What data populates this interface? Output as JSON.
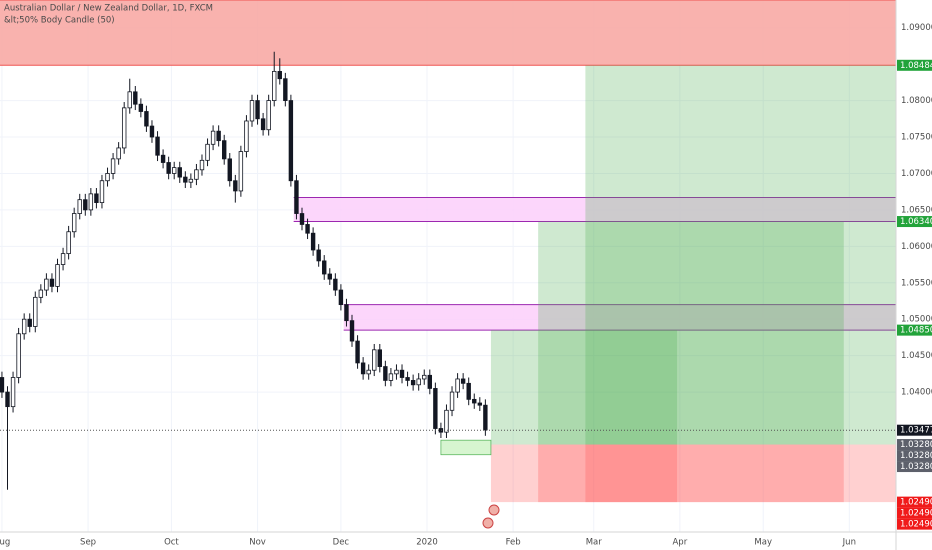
{
  "chart_data": {
    "type": "candlestick",
    "title": "Australian Dollar / New Zealand Dollar, 1D, FXCM",
    "subtitle": "&lt;50% Body Candle (50)",
    "x": [
      0,
      2,
      4,
      6,
      8,
      10,
      12,
      14,
      16,
      18,
      20,
      22,
      24,
      26,
      28,
      30,
      32,
      34,
      36,
      38,
      40,
      42,
      44,
      46,
      48,
      50,
      52,
      54,
      56,
      58,
      60,
      62,
      64,
      66,
      68,
      70,
      72,
      74,
      76,
      78,
      80,
      82,
      84,
      86,
      88,
      90,
      92,
      94,
      96,
      98,
      100,
      102,
      104,
      106,
      108,
      110,
      112,
      114,
      116,
      118,
      120,
      122,
      124,
      126,
      128,
      130,
      132,
      134,
      136,
      138,
      140,
      142,
      144,
      146,
      148,
      150,
      152,
      154,
      156,
      158,
      160,
      162,
      164,
      166,
      168,
      170,
      172,
      174
    ],
    "open": [
      1.042,
      1.04,
      1.038,
      1.042,
      1.048,
      1.05,
      1.049,
      1.053,
      1.054,
      1.0555,
      1.0545,
      1.0575,
      1.059,
      1.062,
      1.0645,
      1.0664,
      1.065,
      1.0672,
      1.066,
      1.069,
      1.07,
      1.072,
      1.0735,
      1.079,
      1.0812,
      1.0795,
      1.0785,
      1.0765,
      1.075,
      1.0725,
      1.0715,
      1.07,
      1.0708,
      1.0695,
      1.0688,
      1.0692,
      1.0705,
      1.0718,
      1.074,
      1.0758,
      1.0745,
      1.072,
      1.069,
      1.0676,
      1.073,
      1.0772,
      1.08,
      1.0775,
      1.076,
      1.08,
      1.084,
      1.083,
      1.08,
      1.069,
      1.0645,
      1.063,
      1.0618,
      1.0595,
      1.058,
      1.0562,
      1.0555,
      1.054,
      1.052,
      1.0498,
      1.047,
      1.044,
      1.0425,
      1.043,
      1.0458,
      1.0435,
      1.0416,
      1.0425,
      1.043,
      1.042,
      1.0416,
      1.041,
      1.0418,
      1.0423,
      1.0405,
      1.035,
      1.0345,
      1.0375,
      1.04,
      1.0418,
      1.0412,
      1.039,
      1.0385,
      1.0382
    ],
    "high": [
      1.0428,
      1.0408,
      1.0428,
      1.0488,
      1.0508,
      1.0508,
      1.0538,
      1.0548,
      1.0563,
      1.0563,
      1.0583,
      1.0598,
      1.0628,
      1.0653,
      1.0672,
      1.0672,
      1.068,
      1.068,
      1.0698,
      1.0708,
      1.0728,
      1.0743,
      1.0798,
      1.083,
      1.082,
      1.0803,
      1.0793,
      1.0773,
      1.0758,
      1.0733,
      1.0723,
      1.0716,
      1.0716,
      1.0703,
      1.07,
      1.0713,
      1.0726,
      1.0748,
      1.0766,
      1.0766,
      1.0753,
      1.0728,
      1.0698,
      1.0738,
      1.078,
      1.0808,
      1.0808,
      1.0783,
      1.0808,
      1.0867,
      1.0858,
      1.0838,
      1.0808,
      1.0698,
      1.0653,
      1.0638,
      1.0626,
      1.0603,
      1.0588,
      1.057,
      1.0563,
      1.0548,
      1.0528,
      1.0506,
      1.0478,
      1.0448,
      1.0438,
      1.0466,
      1.0466,
      1.0443,
      1.0433,
      1.0438,
      1.0438,
      1.0428,
      1.0424,
      1.0426,
      1.0431,
      1.0431,
      1.0413,
      1.0358,
      1.0383,
      1.0408,
      1.0426,
      1.0426,
      1.042,
      1.0398,
      1.0393,
      1.039
    ],
    "low": [
      1.0392,
      1.0266,
      1.0372,
      1.0412,
      1.0472,
      1.0482,
      1.0482,
      1.0522,
      1.0532,
      1.0537,
      1.0537,
      1.0567,
      1.0582,
      1.0612,
      1.0637,
      1.0642,
      1.0642,
      1.0652,
      1.0652,
      1.0682,
      1.0692,
      1.0712,
      1.0727,
      1.0782,
      1.0787,
      1.0777,
      1.0757,
      1.0742,
      1.0717,
      1.0707,
      1.0692,
      1.0692,
      1.0687,
      1.068,
      1.068,
      1.0684,
      1.0697,
      1.071,
      1.0732,
      1.0737,
      1.0712,
      1.0682,
      1.066,
      1.0668,
      1.0722,
      1.0764,
      1.0767,
      1.0752,
      1.0752,
      1.0792,
      1.0822,
      1.0792,
      1.0682,
      1.0637,
      1.0622,
      1.061,
      1.0587,
      1.0572,
      1.0554,
      1.0547,
      1.0532,
      1.0512,
      1.049,
      1.0462,
      1.0432,
      1.0417,
      1.0417,
      1.0422,
      1.0427,
      1.0408,
      1.0408,
      1.0417,
      1.0412,
      1.0408,
      1.0402,
      1.0402,
      1.041,
      1.0397,
      1.0342,
      1.0337,
      1.0337,
      1.0367,
      1.0392,
      1.0404,
      1.0382,
      1.0377,
      1.0374,
      1.034
    ],
    "close": [
      1.04,
      1.038,
      1.042,
      1.048,
      1.05,
      1.049,
      1.053,
      1.054,
      1.0555,
      1.0545,
      1.0575,
      1.059,
      1.062,
      1.0645,
      1.0664,
      1.065,
      1.0672,
      1.066,
      1.069,
      1.07,
      1.072,
      1.0735,
      1.079,
      1.0812,
      1.0795,
      1.0785,
      1.0765,
      1.075,
      1.0725,
      1.0715,
      1.07,
      1.0708,
      1.0695,
      1.0688,
      1.0692,
      1.0705,
      1.0718,
      1.074,
      1.0758,
      1.0745,
      1.072,
      1.069,
      1.0676,
      1.073,
      1.0772,
      1.08,
      1.0775,
      1.076,
      1.08,
      1.084,
      1.083,
      1.08,
      1.069,
      1.0645,
      1.063,
      1.0618,
      1.0595,
      1.058,
      1.0562,
      1.0555,
      1.054,
      1.052,
      1.0498,
      1.047,
      1.044,
      1.0425,
      1.043,
      1.0458,
      1.0435,
      1.0416,
      1.0425,
      1.043,
      1.042,
      1.0416,
      1.041,
      1.0418,
      1.0423,
      1.0405,
      1.035,
      1.0345,
      1.0375,
      1.04,
      1.0418,
      1.0412,
      1.039,
      1.0385,
      1.0382,
      1.0348
    ],
    "up_color": "#ffffff",
    "down_color": "#131722",
    "xlim": [
      -0.7,
      321.8
    ],
    "xticks": [
      {
        "value": 0,
        "label": "Aug"
      },
      {
        "value": 31,
        "label": "Sep"
      },
      {
        "value": 61,
        "label": "Oct"
      },
      {
        "value": 92,
        "label": "Nov"
      },
      {
        "value": 122,
        "label": "Dec"
      },
      {
        "value": 153,
        "label": "2020"
      },
      {
        "value": 184,
        "label": "Feb"
      },
      {
        "value": 213,
        "label": "Mar"
      },
      {
        "value": 244,
        "label": "Apr"
      },
      {
        "value": 274,
        "label": "May"
      },
      {
        "value": 305,
        "label": "Jun"
      }
    ],
    "ylim": [
      1.0208,
      1.0938
    ],
    "yticks": [
      {
        "value": 1.04,
        "label": "1.04000"
      },
      {
        "value": 1.045,
        "label": "1.04500"
      },
      {
        "value": 1.05,
        "label": "1.05000"
      },
      {
        "value": 1.055,
        "label": "1.05500"
      },
      {
        "value": 1.06,
        "label": "1.06000"
      },
      {
        "value": 1.065,
        "label": "1.06500"
      },
      {
        "value": 1.07,
        "label": "1.07000"
      },
      {
        "value": 1.075,
        "label": "1.07500"
      },
      {
        "value": 1.08,
        "label": "1.08000"
      },
      {
        "value": 1.09,
        "label": "1.09000"
      }
    ],
    "current_price": {
      "value": 1.03477,
      "label": "1.03477",
      "color": "#131722"
    },
    "zones": [
      {
        "low": 1.08484,
        "high": 1.0938,
        "start": -0.7,
        "fill": "#f8a5a0",
        "border": "#ef5350"
      },
      {
        "low": 1.0634,
        "high": 1.0667,
        "start": 105,
        "fill": "#fccffa",
        "border": "#9c27b0"
      },
      {
        "low": 1.0485,
        "high": 1.052,
        "start": 123,
        "fill": "#fccffa",
        "border": "#9c27b0"
      }
    ],
    "box": {
      "low": 1.0314,
      "high": 1.0334,
      "start": 158,
      "end": 176,
      "fill": "#d7f5d0",
      "border": "#4caf50"
    },
    "target_color": "#22a33a",
    "entry_color": "#5d606b",
    "stop_color": "#f01a1a",
    "positions": [
      {
        "start": 176,
        "end": 243,
        "entry": {
          "value": 1.0328,
          "label": "1.03280"
        },
        "target": {
          "value": 1.0485,
          "label": "1.04850"
        },
        "stop": {
          "value": 1.0249,
          "label": "1.02490"
        }
      },
      {
        "start": 193,
        "end": 303,
        "entry": {
          "value": 1.0328,
          "label": "1.03280"
        },
        "target": {
          "value": 1.0634,
          "label": "1.06340"
        },
        "stop": {
          "value": 1.0249,
          "label": "1.02490"
        }
      },
      {
        "start": 210,
        "end": 321.8,
        "entry": {
          "value": 1.0328,
          "label": "1.03280"
        },
        "target": {
          "value": 1.08484,
          "label": "1.08484"
        },
        "stop": {
          "value": 1.0249,
          "label": "1.02490"
        }
      }
    ]
  }
}
